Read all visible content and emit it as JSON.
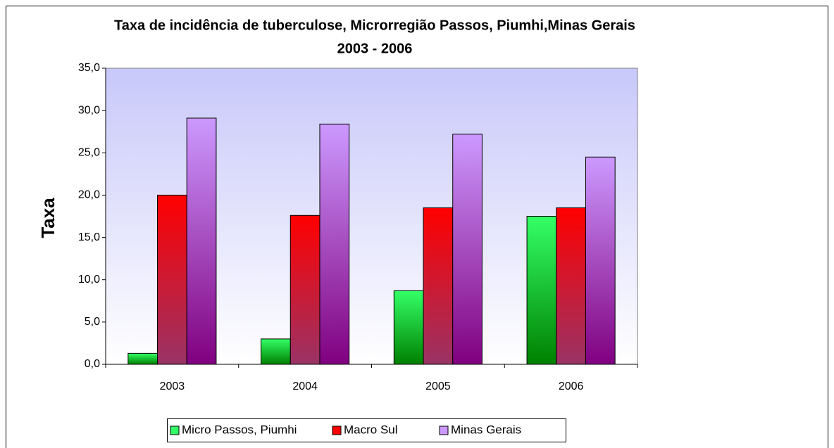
{
  "chart_data": {
    "type": "bar",
    "title": "Taxa de incidência  de tuberculose, Microrregião Passos, Piumhi,Minas Gerais",
    "subtitle": "2003 - 2006",
    "y_label": "Taxa",
    "categories": [
      "2003",
      "2004",
      "2005",
      "2006"
    ],
    "series": [
      {
        "name": "Micro Passos, Piumhi",
        "color": "#33ff66",
        "values": [
          1.3,
          3.0,
          8.7,
          17.5
        ]
      },
      {
        "name": "Macro Sul",
        "color": "#ff0000",
        "values": [
          20.0,
          17.6,
          18.5,
          18.5
        ]
      },
      {
        "name": "Minas Gerais",
        "color": "#cc99ff",
        "values": [
          29.1,
          28.4,
          27.2,
          24.5
        ]
      }
    ],
    "ylim": [
      0,
      35
    ],
    "yticks": [
      {
        "value": 0,
        "label": "0,0"
      },
      {
        "value": 5,
        "label": "5,0"
      },
      {
        "value": 10,
        "label": "10,0"
      },
      {
        "value": 15,
        "label": "15,0"
      },
      {
        "value": 20,
        "label": "20,0"
      },
      {
        "value": 25,
        "label": "25,0"
      },
      {
        "value": 30,
        "label": "30,0"
      },
      {
        "value": 35,
        "label": "35,0"
      }
    ],
    "legend": "bottom"
  }
}
